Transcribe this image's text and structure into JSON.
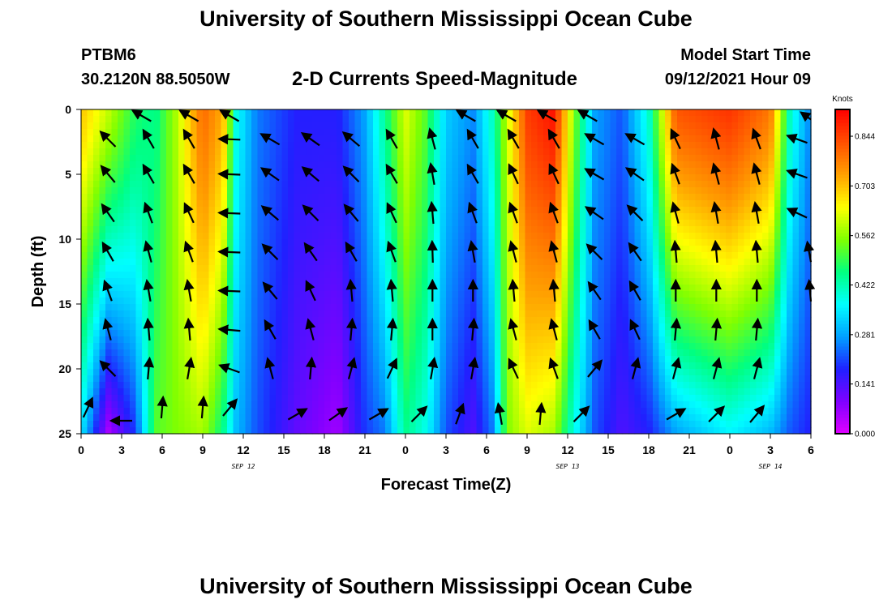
{
  "header": {
    "title": "University of Southern Mississippi Ocean Cube",
    "station": "PTBM6",
    "coords": "30.2120N  88.5050W",
    "subtitle": "2-D Currents Speed-Magnitude",
    "model_start_label": "Model Start Time",
    "model_start_value": "09/12/2021 Hour 09"
  },
  "footer": {
    "title": "University of Southern Mississippi Ocean Cube"
  },
  "chart_data": {
    "type": "heatmap",
    "title": "2-D Currents Speed-Magnitude",
    "xlabel": "Forecast Time(Z)",
    "ylabel": "Depth (ft)",
    "x_ticks": [
      "0",
      "3",
      "6",
      "9",
      "12",
      "15",
      "18",
      "21",
      "0",
      "3",
      "6",
      "9",
      "12",
      "15",
      "18",
      "21",
      "0",
      "3",
      "6"
    ],
    "x_tick_hours": [
      0,
      3,
      6,
      9,
      12,
      15,
      18,
      21,
      24,
      27,
      30,
      33,
      36,
      39,
      42,
      45,
      48,
      51,
      54
    ],
    "date_labels": [
      {
        "text": "SEP 12",
        "hour": 12
      },
      {
        "text": "SEP 13",
        "hour": 36
      },
      {
        "text": "SEP 14",
        "hour": 51
      }
    ],
    "xlim": [
      0,
      54
    ],
    "y_ticks": [
      "0",
      "5",
      "10",
      "15",
      "20",
      "25"
    ],
    "y_tick_values": [
      0,
      5,
      10,
      15,
      20,
      25
    ],
    "ylim": [
      0,
      25
    ],
    "colorbar": {
      "unit": "Knots",
      "range": [
        0,
        0.92
      ],
      "tick_labels": [
        "0.000",
        "0.141",
        "0.281",
        "0.422",
        "0.562",
        "0.703",
        "0.844"
      ],
      "tick_values": [
        0,
        0.141,
        0.281,
        0.422,
        0.562,
        0.703,
        0.844
      ],
      "colors": [
        "#e000ff",
        "#8000ff",
        "#2020ff",
        "#00a0ff",
        "#00ffff",
        "#00ff80",
        "#80ff00",
        "#ffff00",
        "#ffa000",
        "#ff5000",
        "#ff0000"
      ]
    },
    "speed_profiles": [
      {
        "hour": 0,
        "top": 0.7,
        "bottom": 0.35
      },
      {
        "hour": 2,
        "top": 0.6,
        "bottom": 0.05
      },
      {
        "hour": 4,
        "top": 0.48,
        "bottom": 0.2
      },
      {
        "hour": 5.5,
        "top": 0.45,
        "bottom": 0.52
      },
      {
        "hour": 7,
        "top": 0.58,
        "bottom": 0.55
      },
      {
        "hour": 9,
        "top": 0.8,
        "bottom": 0.58
      },
      {
        "hour": 10.5,
        "top": 0.72,
        "bottom": 0.45
      },
      {
        "hour": 11.5,
        "top": 0.38,
        "bottom": 0.3
      },
      {
        "hour": 13,
        "top": 0.25,
        "bottom": 0.22
      },
      {
        "hour": 16,
        "top": 0.18,
        "bottom": 0.12
      },
      {
        "hour": 19,
        "top": 0.18,
        "bottom": 0.06
      },
      {
        "hour": 21,
        "top": 0.28,
        "bottom": 0.2
      },
      {
        "hour": 22.5,
        "top": 0.45,
        "bottom": 0.25
      },
      {
        "hour": 24,
        "top": 0.62,
        "bottom": 0.45
      },
      {
        "hour": 25.5,
        "top": 0.52,
        "bottom": 0.38
      },
      {
        "hour": 27,
        "top": 0.32,
        "bottom": 0.22
      },
      {
        "hour": 29,
        "top": 0.26,
        "bottom": 0.14
      },
      {
        "hour": 30.5,
        "top": 0.42,
        "bottom": 0.25
      },
      {
        "hour": 31.5,
        "top": 0.6,
        "bottom": 0.55
      },
      {
        "hour": 33,
        "top": 0.85,
        "bottom": 0.62
      },
      {
        "hour": 35,
        "top": 0.9,
        "bottom": 0.58
      },
      {
        "hour": 36.5,
        "top": 0.55,
        "bottom": 0.38
      },
      {
        "hour": 38,
        "top": 0.28,
        "bottom": 0.22
      },
      {
        "hour": 40,
        "top": 0.22,
        "bottom": 0.14
      },
      {
        "hour": 42,
        "top": 0.4,
        "bottom": 0.18
      },
      {
        "hour": 44,
        "top": 0.82,
        "bottom": 0.28
      },
      {
        "hour": 48,
        "top": 0.86,
        "bottom": 0.36
      },
      {
        "hour": 51,
        "top": 0.78,
        "bottom": 0.3
      },
      {
        "hour": 52.5,
        "top": 0.4,
        "bottom": 0.22
      },
      {
        "hour": 54,
        "top": 0.25,
        "bottom": 0.18
      }
    ],
    "vectors": [
      {
        "hour": 4.5,
        "depth": 0.5,
        "dir": 300
      },
      {
        "hour": 8,
        "depth": 0.5,
        "dir": 300
      },
      {
        "hour": 11,
        "depth": 0.5,
        "dir": 300
      },
      {
        "hour": 28.5,
        "depth": 0.5,
        "dir": 300
      },
      {
        "hour": 31.5,
        "depth": 0.5,
        "dir": 300
      },
      {
        "hour": 34.5,
        "depth": 0.5,
        "dir": 300
      },
      {
        "hour": 37.5,
        "depth": 0.5,
        "dir": 300
      },
      {
        "hour": 54,
        "depth": 0.5,
        "dir": 290
      },
      {
        "hour": 2,
        "depth": 2.3,
        "dir": 315
      },
      {
        "hour": 5,
        "depth": 2.3,
        "dir": 330
      },
      {
        "hour": 8,
        "depth": 2.3,
        "dir": 330
      },
      {
        "hour": 11,
        "depth": 2.3,
        "dir": 272
      },
      {
        "hour": 14,
        "depth": 2.3,
        "dir": 300
      },
      {
        "hour": 17,
        "depth": 2.3,
        "dir": 305
      },
      {
        "hour": 20,
        "depth": 2.3,
        "dir": 310
      },
      {
        "hour": 23,
        "depth": 2.3,
        "dir": 330
      },
      {
        "hour": 26,
        "depth": 2.3,
        "dir": 345
      },
      {
        "hour": 29,
        "depth": 2.3,
        "dir": 330
      },
      {
        "hour": 32,
        "depth": 2.3,
        "dir": 330
      },
      {
        "hour": 35,
        "depth": 2.3,
        "dir": 330
      },
      {
        "hour": 38,
        "depth": 2.3,
        "dir": 300
      },
      {
        "hour": 41,
        "depth": 2.3,
        "dir": 300
      },
      {
        "hour": 44,
        "depth": 2.3,
        "dir": 335
      },
      {
        "hour": 47,
        "depth": 2.3,
        "dir": 345
      },
      {
        "hour": 50,
        "depth": 2.3,
        "dir": 340
      },
      {
        "hour": 53,
        "depth": 2.3,
        "dir": 290
      },
      {
        "hour": 2,
        "depth": 5,
        "dir": 320
      },
      {
        "hour": 5,
        "depth": 5,
        "dir": 330
      },
      {
        "hour": 8,
        "depth": 5,
        "dir": 330
      },
      {
        "hour": 11,
        "depth": 5,
        "dir": 272
      },
      {
        "hour": 14,
        "depth": 5,
        "dir": 305
      },
      {
        "hour": 17,
        "depth": 5,
        "dir": 310
      },
      {
        "hour": 20,
        "depth": 5,
        "dir": 315
      },
      {
        "hour": 23,
        "depth": 5,
        "dir": 330
      },
      {
        "hour": 26,
        "depth": 5,
        "dir": 350
      },
      {
        "hour": 29,
        "depth": 5,
        "dir": 330
      },
      {
        "hour": 32,
        "depth": 5,
        "dir": 335
      },
      {
        "hour": 35,
        "depth": 5,
        "dir": 335
      },
      {
        "hour": 38,
        "depth": 5,
        "dir": 300
      },
      {
        "hour": 41,
        "depth": 5,
        "dir": 305
      },
      {
        "hour": 44,
        "depth": 5,
        "dir": 340
      },
      {
        "hour": 47,
        "depth": 5,
        "dir": 345
      },
      {
        "hour": 50,
        "depth": 5,
        "dir": 345
      },
      {
        "hour": 53,
        "depth": 5,
        "dir": 290
      },
      {
        "hour": 2,
        "depth": 8,
        "dir": 325
      },
      {
        "hour": 5,
        "depth": 8,
        "dir": 340
      },
      {
        "hour": 8,
        "depth": 8,
        "dir": 335
      },
      {
        "hour": 11,
        "depth": 8,
        "dir": 272
      },
      {
        "hour": 14,
        "depth": 8,
        "dir": 310
      },
      {
        "hour": 17,
        "depth": 8,
        "dir": 315
      },
      {
        "hour": 20,
        "depth": 8,
        "dir": 320
      },
      {
        "hour": 23,
        "depth": 8,
        "dir": 335
      },
      {
        "hour": 26,
        "depth": 8,
        "dir": 355
      },
      {
        "hour": 29,
        "depth": 8,
        "dir": 340
      },
      {
        "hour": 32,
        "depth": 8,
        "dir": 340
      },
      {
        "hour": 35,
        "depth": 8,
        "dir": 340
      },
      {
        "hour": 38,
        "depth": 8,
        "dir": 305
      },
      {
        "hour": 41,
        "depth": 8,
        "dir": 315
      },
      {
        "hour": 44,
        "depth": 8,
        "dir": 345
      },
      {
        "hour": 47,
        "depth": 8,
        "dir": 350
      },
      {
        "hour": 50,
        "depth": 8,
        "dir": 350
      },
      {
        "hour": 53,
        "depth": 8,
        "dir": 295
      },
      {
        "hour": 2,
        "depth": 11,
        "dir": 330
      },
      {
        "hour": 5,
        "depth": 11,
        "dir": 345
      },
      {
        "hour": 8,
        "depth": 11,
        "dir": 340
      },
      {
        "hour": 11,
        "depth": 11,
        "dir": 272
      },
      {
        "hour": 14,
        "depth": 11,
        "dir": 315
      },
      {
        "hour": 17,
        "depth": 11,
        "dir": 325
      },
      {
        "hour": 20,
        "depth": 11,
        "dir": 330
      },
      {
        "hour": 23,
        "depth": 11,
        "dir": 340
      },
      {
        "hour": 26,
        "depth": 11,
        "dir": 358
      },
      {
        "hour": 29,
        "depth": 11,
        "dir": 350
      },
      {
        "hour": 32,
        "depth": 11,
        "dir": 345
      },
      {
        "hour": 35,
        "depth": 11,
        "dir": 345
      },
      {
        "hour": 38,
        "depth": 11,
        "dir": 315
      },
      {
        "hour": 41,
        "depth": 11,
        "dir": 325
      },
      {
        "hour": 44,
        "depth": 11,
        "dir": 355
      },
      {
        "hour": 47,
        "depth": 11,
        "dir": 355
      },
      {
        "hour": 50,
        "depth": 11,
        "dir": 355
      },
      {
        "hour": 54,
        "depth": 11,
        "dir": 340
      },
      {
        "hour": 2,
        "depth": 14,
        "dir": 340
      },
      {
        "hour": 5,
        "depth": 14,
        "dir": 350
      },
      {
        "hour": 8,
        "depth": 14,
        "dir": 350
      },
      {
        "hour": 11,
        "depth": 14,
        "dir": 272
      },
      {
        "hour": 14,
        "depth": 14,
        "dir": 320
      },
      {
        "hour": 17,
        "depth": 14,
        "dir": 335
      },
      {
        "hour": 20,
        "depth": 14,
        "dir": 355
      },
      {
        "hour": 23,
        "depth": 14,
        "dir": 355
      },
      {
        "hour": 26,
        "depth": 14,
        "dir": 0
      },
      {
        "hour": 29,
        "depth": 14,
        "dir": 0
      },
      {
        "hour": 32,
        "depth": 14,
        "dir": 355
      },
      {
        "hour": 35,
        "depth": 14,
        "dir": 355
      },
      {
        "hour": 38,
        "depth": 14,
        "dir": 325
      },
      {
        "hour": 41,
        "depth": 14,
        "dir": 330
      },
      {
        "hour": 44,
        "depth": 14,
        "dir": 0
      },
      {
        "hour": 47,
        "depth": 14,
        "dir": 0
      },
      {
        "hour": 50,
        "depth": 14,
        "dir": 0
      },
      {
        "hour": 54,
        "depth": 14,
        "dir": 350
      },
      {
        "hour": 2,
        "depth": 17,
        "dir": 345
      },
      {
        "hour": 5,
        "depth": 17,
        "dir": 355
      },
      {
        "hour": 8,
        "depth": 17,
        "dir": 355
      },
      {
        "hour": 11,
        "depth": 17,
        "dir": 275
      },
      {
        "hour": 14,
        "depth": 17,
        "dir": 330
      },
      {
        "hour": 17,
        "depth": 17,
        "dir": 345
      },
      {
        "hour": 20,
        "depth": 17,
        "dir": 5
      },
      {
        "hour": 23,
        "depth": 17,
        "dir": 5
      },
      {
        "hour": 26,
        "depth": 17,
        "dir": 0
      },
      {
        "hour": 29,
        "depth": 17,
        "dir": 5
      },
      {
        "hour": 32,
        "depth": 17,
        "dir": 345
      },
      {
        "hour": 35,
        "depth": 17,
        "dir": 345
      },
      {
        "hour": 38,
        "depth": 17,
        "dir": 330
      },
      {
        "hour": 41,
        "depth": 17,
        "dir": 335
      },
      {
        "hour": 44,
        "depth": 17,
        "dir": 5
      },
      {
        "hour": 47,
        "depth": 17,
        "dir": 5
      },
      {
        "hour": 50,
        "depth": 17,
        "dir": 5
      },
      {
        "hour": 2,
        "depth": 20,
        "dir": 315
      },
      {
        "hour": 5,
        "depth": 20,
        "dir": 5
      },
      {
        "hour": 8,
        "depth": 20,
        "dir": 10
      },
      {
        "hour": 11,
        "depth": 20,
        "dir": 290
      },
      {
        "hour": 14,
        "depth": 20,
        "dir": 345
      },
      {
        "hour": 17,
        "depth": 20,
        "dir": 5
      },
      {
        "hour": 20,
        "depth": 20,
        "dir": 15
      },
      {
        "hour": 23,
        "depth": 20,
        "dir": 25
      },
      {
        "hour": 26,
        "depth": 20,
        "dir": 10
      },
      {
        "hour": 29,
        "depth": 20,
        "dir": 10
      },
      {
        "hour": 32,
        "depth": 20,
        "dir": 335
      },
      {
        "hour": 35,
        "depth": 20,
        "dir": 340
      },
      {
        "hour": 38,
        "depth": 20,
        "dir": 40
      },
      {
        "hour": 41,
        "depth": 20,
        "dir": 15
      },
      {
        "hour": 44,
        "depth": 20,
        "dir": 15
      },
      {
        "hour": 47,
        "depth": 20,
        "dir": 15
      },
      {
        "hour": 50,
        "depth": 20,
        "dir": 15
      },
      {
        "hour": 0.5,
        "depth": 23,
        "dir": 25
      },
      {
        "hour": 3,
        "depth": 24,
        "dir": 270
      },
      {
        "hour": 6,
        "depth": 23,
        "dir": 5
      },
      {
        "hour": 9,
        "depth": 23,
        "dir": 5
      },
      {
        "hour": 11,
        "depth": 23,
        "dir": 40
      },
      {
        "hour": 16,
        "depth": 23.5,
        "dir": 60
      },
      {
        "hour": 19,
        "depth": 23.5,
        "dir": 55
      },
      {
        "hour": 22,
        "depth": 23.5,
        "dir": 60
      },
      {
        "hour": 25,
        "depth": 23.5,
        "dir": 45
      },
      {
        "hour": 28,
        "depth": 23.5,
        "dir": 20
      },
      {
        "hour": 31,
        "depth": 23.5,
        "dir": 350
      },
      {
        "hour": 34,
        "depth": 23.5,
        "dir": 5
      },
      {
        "hour": 37,
        "depth": 23.5,
        "dir": 45
      },
      {
        "hour": 44,
        "depth": 23.5,
        "dir": 60
      },
      {
        "hour": 47,
        "depth": 23.5,
        "dir": 45
      },
      {
        "hour": 50,
        "depth": 23.5,
        "dir": 40
      }
    ]
  }
}
